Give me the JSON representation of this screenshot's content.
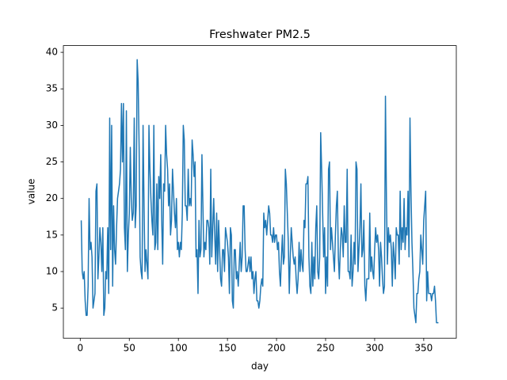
{
  "chart_data": {
    "type": "line",
    "title": "Freshwater PM2.5",
    "x_label": "day",
    "y_label": "value",
    "color": "#1f77b4",
    "x": [
      1,
      2,
      3,
      4,
      5,
      6,
      7,
      8,
      9,
      10,
      11,
      12,
      13,
      14,
      15,
      16,
      17,
      18,
      19,
      20,
      21,
      22,
      23,
      24,
      25,
      26,
      27,
      28,
      29,
      30,
      31,
      32,
      33,
      34,
      35,
      36,
      37,
      38,
      39,
      40,
      41,
      42,
      43,
      44,
      45,
      46,
      47,
      48,
      49,
      50,
      51,
      52,
      53,
      54,
      55,
      56,
      57,
      58,
      59,
      60,
      61,
      62,
      63,
      64,
      65,
      66,
      67,
      68,
      69,
      70,
      71,
      72,
      73,
      74,
      75,
      76,
      77,
      78,
      79,
      80,
      81,
      82,
      83,
      84,
      85,
      86,
      87,
      88,
      89,
      90,
      91,
      92,
      93,
      94,
      95,
      96,
      97,
      98,
      99,
      100,
      101,
      102,
      103,
      104,
      105,
      106,
      107,
      108,
      109,
      110,
      111,
      112,
      113,
      114,
      115,
      116,
      117,
      118,
      119,
      120,
      121,
      122,
      123,
      124,
      125,
      126,
      127,
      128,
      129,
      130,
      131,
      132,
      133,
      134,
      135,
      136,
      137,
      138,
      139,
      140,
      141,
      142,
      143,
      144,
      145,
      146,
      147,
      148,
      149,
      150,
      151,
      152,
      153,
      154,
      155,
      156,
      157,
      158,
      159,
      160,
      161,
      162,
      163,
      164,
      165,
      166,
      167,
      168,
      169,
      170,
      171,
      172,
      173,
      174,
      175,
      176,
      177,
      178,
      179,
      180,
      181,
      182,
      183,
      184,
      185,
      186,
      187,
      188,
      189,
      190,
      191,
      192,
      193,
      194,
      195,
      196,
      197,
      198,
      199,
      200,
      201,
      202,
      203,
      204,
      205,
      206,
      207,
      208,
      209,
      210,
      211,
      212,
      213,
      214,
      215,
      216,
      217,
      218,
      219,
      220,
      221,
      222,
      223,
      224,
      225,
      226,
      227,
      228,
      229,
      230,
      231,
      232,
      233,
      234,
      235,
      236,
      237,
      238,
      239,
      240,
      241,
      242,
      243,
      244,
      245,
      246,
      247,
      248,
      249,
      250,
      251,
      252,
      253,
      254,
      255,
      256,
      257,
      258,
      259,
      260,
      261,
      262,
      263,
      264,
      265,
      266,
      267,
      268,
      269,
      270,
      271,
      272,
      273,
      274,
      275,
      276,
      277,
      278,
      279,
      280,
      281,
      282,
      283,
      284,
      285,
      286,
      287,
      288,
      289,
      290,
      291,
      292,
      293,
      294,
      295,
      296,
      297,
      298,
      299,
      300,
      301,
      302,
      303,
      304,
      305,
      306,
      307,
      308,
      309,
      310,
      311,
      312,
      313,
      314,
      315,
      316,
      317,
      318,
      319,
      320,
      321,
      322,
      323,
      324,
      325,
      326,
      327,
      328,
      329,
      330,
      331,
      332,
      333,
      334,
      335,
      336,
      337,
      338,
      339,
      340,
      341,
      342,
      343,
      344,
      345,
      346,
      347,
      348,
      349,
      350,
      351,
      352,
      353,
      354,
      355,
      356,
      357,
      358,
      359,
      360,
      361,
      362,
      363,
      364,
      365
    ],
    "values": [
      17,
      10,
      9,
      10,
      6,
      4,
      4,
      8,
      20,
      13,
      14,
      12,
      5,
      6,
      7,
      21,
      22,
      9,
      12,
      16,
      14,
      10,
      16,
      4,
      5,
      10,
      9,
      16,
      7,
      31,
      13,
      30,
      8,
      19,
      13,
      11,
      16,
      20,
      21,
      22,
      24,
      33,
      25,
      33,
      16,
      13,
      32,
      10,
      15,
      18,
      27,
      20,
      17,
      18,
      31,
      16,
      19,
      39,
      36,
      27,
      12,
      10,
      9,
      30,
      19,
      10,
      13,
      11,
      9,
      30,
      24,
      20,
      17,
      15,
      30,
      13,
      14,
      22,
      13,
      23,
      20,
      26,
      17,
      11,
      22,
      21,
      30,
      26,
      24,
      19,
      22,
      15,
      17,
      24,
      21,
      18,
      16,
      20,
      13,
      14,
      12,
      14,
      13,
      18,
      30,
      28,
      19,
      19,
      17,
      24,
      19,
      20,
      19,
      28,
      26,
      23,
      25,
      12,
      13,
      7,
      17,
      12,
      13,
      26,
      19,
      12,
      14,
      13,
      17,
      17,
      16,
      11,
      24,
      12,
      16,
      20,
      15,
      11,
      18,
      10,
      17,
      13,
      9,
      8,
      13,
      13,
      10,
      16,
      15,
      14,
      12,
      7,
      16,
      15,
      6,
      5,
      13,
      13,
      9,
      10,
      8,
      11,
      14,
      10,
      12,
      19,
      19,
      13,
      10,
      10,
      11,
      12,
      10,
      12,
      9,
      10,
      7,
      9,
      10,
      6,
      6,
      5,
      6,
      8,
      9,
      8,
      18,
      16,
      17,
      15,
      17,
      19,
      18,
      15,
      15,
      14,
      16,
      14,
      15,
      15,
      13,
      14,
      10,
      8,
      12,
      15,
      11,
      12,
      24,
      22,
      18,
      14,
      7,
      12,
      16,
      14,
      12,
      11,
      12,
      9,
      7,
      9,
      14,
      10,
      13,
      11,
      10,
      17,
      16,
      22,
      22,
      23,
      12,
      8,
      7,
      14,
      8,
      12,
      9,
      16,
      19,
      10,
      9,
      12,
      29,
      24,
      18,
      12,
      16,
      7,
      12,
      8,
      24,
      25,
      13,
      16,
      14,
      12,
      10,
      15,
      19,
      21,
      12,
      9,
      13,
      16,
      15,
      12,
      19,
      14,
      14,
      24,
      10,
      10,
      9,
      15,
      8,
      10,
      14,
      11,
      25,
      24,
      10,
      13,
      16,
      22,
      12,
      13,
      17,
      8,
      6,
      9,
      9,
      9,
      18,
      10,
      12,
      10,
      9,
      13,
      16,
      14,
      15,
      13,
      8,
      14,
      12,
      9,
      7,
      8,
      34,
      20,
      11,
      16,
      14,
      15,
      13,
      8,
      14,
      12,
      9,
      16,
      15,
      15,
      11,
      21,
      13,
      16,
      14,
      20,
      13,
      16,
      15,
      21,
      12,
      31,
      21,
      14,
      10,
      5,
      4,
      3,
      7,
      7,
      9,
      10,
      15,
      13,
      11,
      17,
      19,
      21,
      6,
      10,
      7,
      7,
      7,
      6,
      7,
      7,
      8,
      6,
      3,
      3,
      3
    ],
    "xlim": [
      -17.2,
      383.2
    ],
    "ylim": [
      0.88,
      40.92
    ],
    "xticks": [
      0,
      50,
      100,
      150,
      200,
      250,
      300,
      350
    ],
    "yticks": [
      5,
      10,
      15,
      20,
      25,
      30,
      35,
      40
    ]
  }
}
